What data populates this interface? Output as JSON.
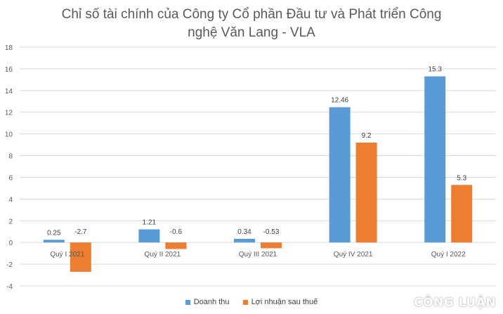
{
  "chart_data": {
    "type": "bar",
    "title": "Chỉ số tài chính của Công ty Cổ phần Đầu tư và Phát triển Công nghệ Văn Lang - VLA",
    "title_lines": [
      "Chỉ số tài chính của Công ty Cổ phần Đầu tư và Phát triển Công",
      "nghệ Văn Lang - VLA"
    ],
    "categories": [
      "Quý I 2021",
      "Quý II 2021",
      "Quý III 2021",
      "Quý IV 2021",
      "Quý I 2022"
    ],
    "series": [
      {
        "name": "Doanh thu",
        "values": [
          0.25,
          1.21,
          0.34,
          12.46,
          15.3
        ],
        "color": "#5B9BD5"
      },
      {
        "name": "Lợi nhuận sau thuế",
        "values": [
          -2.7,
          -0.6,
          -0.53,
          9.2,
          5.3
        ],
        "color": "#ED7D31"
      }
    ],
    "data_labels": [
      [
        "0.25",
        "1.21",
        "0.34",
        "12.46",
        "15.3"
      ],
      [
        "-2.7",
        "-0.6",
        "-0.53",
        "9.2",
        "5.3"
      ]
    ],
    "yticks": [
      "-4",
      "-2",
      "0",
      "2",
      "4",
      "6",
      "8",
      "10",
      "12",
      "14",
      "16",
      "18"
    ],
    "ylim": [
      -4,
      18
    ],
    "grid": true,
    "legend_position": "bottom"
  },
  "watermark": "CÔNG LUẬN"
}
